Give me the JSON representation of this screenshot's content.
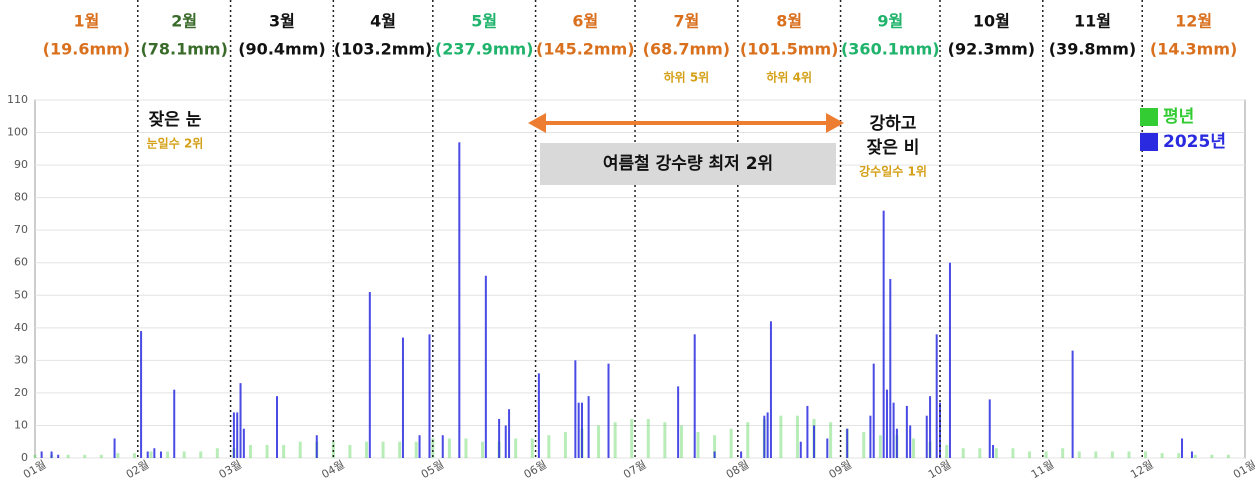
{
  "chart_data": {
    "type": "bar",
    "months": [
      {
        "name": "1월",
        "amount": "(19.6mm)",
        "color": "#d9701e"
      },
      {
        "name": "2월",
        "amount": "(78.1mm)",
        "color": "#3a6b2a"
      },
      {
        "name": "3월",
        "amount": "(90.4mm)",
        "color": "#111111"
      },
      {
        "name": "4월",
        "amount": "(103.2mm)",
        "color": "#111111"
      },
      {
        "name": "5월",
        "amount": "(237.9mm)",
        "color": "#1fb36b"
      },
      {
        "name": "6월",
        "amount": "(145.2mm)",
        "color": "#d9701e"
      },
      {
        "name": "7월",
        "amount": "(68.7mm)",
        "color": "#d9701e",
        "note": "하위 5위"
      },
      {
        "name": "8월",
        "amount": "(101.5mm)",
        "color": "#d9701e",
        "note": "하위 4위"
      },
      {
        "name": "9월",
        "amount": "(360.1mm)",
        "color": "#1fb36b"
      },
      {
        "name": "10월",
        "amount": "(92.3mm)",
        "color": "#111111"
      },
      {
        "name": "11월",
        "amount": "(39.8mm)",
        "color": "#111111"
      },
      {
        "name": "12월",
        "amount": "(14.3mm)",
        "color": "#d9701e"
      }
    ],
    "annotations": {
      "snow": "잦은 눈",
      "snow_note": "눈일수 2위",
      "summer": "여름철 강수량 최저 2위",
      "rain_1": "강하고",
      "rain_2": "잦은 비",
      "rain_note": "강수일수 1위"
    },
    "xlim": [
      0,
      365
    ],
    "xticks": [
      {
        "value": 0,
        "label": "01월"
      },
      {
        "value": 31,
        "label": "02월"
      },
      {
        "value": 59,
        "label": "03월"
      },
      {
        "value": 90,
        "label": "04월"
      },
      {
        "value": 120,
        "label": "05월"
      },
      {
        "value": 151,
        "label": "06월"
      },
      {
        "value": 181,
        "label": "07월"
      },
      {
        "value": 212,
        "label": "08월"
      },
      {
        "value": 243,
        "label": "09월"
      },
      {
        "value": 273,
        "label": "10월"
      },
      {
        "value": 304,
        "label": "11월"
      },
      {
        "value": 334,
        "label": "12월"
      },
      {
        "value": 365,
        "label": "01월"
      }
    ],
    "ylim": [
      0,
      110
    ],
    "yticks": [
      0,
      10,
      20,
      30,
      40,
      50,
      60,
      70,
      80,
      90,
      100,
      110
    ],
    "grid": true,
    "legend": "top-right",
    "series": [
      {
        "name": "평년",
        "color": "#33cc33",
        "x": [
          0,
          5,
          10,
          15,
          20,
          25,
          30,
          35,
          40,
          45,
          50,
          55,
          60,
          65,
          70,
          75,
          80,
          85,
          90,
          95,
          100,
          105,
          110,
          115,
          120,
          125,
          130,
          135,
          140,
          145,
          150,
          155,
          160,
          165,
          170,
          175,
          180,
          185,
          190,
          195,
          200,
          205,
          210,
          215,
          220,
          225,
          230,
          235,
          240,
          245,
          250,
          255,
          260,
          265,
          270,
          275,
          280,
          285,
          290,
          295,
          300,
          305,
          310,
          315,
          320,
          325,
          330,
          335,
          340,
          345,
          350,
          355,
          360
        ],
        "values": [
          1,
          1,
          1,
          1,
          1,
          1.5,
          1.5,
          2,
          2,
          2,
          2,
          3,
          3,
          4,
          4,
          4,
          5,
          5,
          5,
          4,
          5,
          5,
          5,
          5,
          6,
          6,
          6,
          5,
          5,
          6,
          6,
          7,
          8,
          9,
          10,
          11,
          12,
          12,
          11,
          10,
          8,
          7,
          9,
          11,
          12,
          13,
          13,
          12,
          11,
          9,
          8,
          7,
          7,
          6,
          5,
          4,
          3,
          3,
          3,
          3,
          2,
          2,
          3,
          2,
          2,
          2,
          2,
          2,
          1.5,
          1.5,
          1,
          1,
          1
        ]
      },
      {
        "name": "2025년",
        "color": "#2a2ae0",
        "x": [
          2,
          5,
          7,
          24,
          32,
          34,
          36,
          38,
          42,
          60,
          61,
          62,
          63,
          73,
          85,
          101,
          111,
          116,
          119,
          123,
          128,
          136,
          140,
          142,
          143,
          152,
          163,
          164,
          165,
          167,
          173,
          194,
          199,
          205,
          213,
          220,
          221,
          222,
          231,
          233,
          235,
          239,
          245,
          252,
          253,
          256,
          257,
          258,
          259,
          260,
          263,
          264,
          269,
          270,
          272,
          273,
          276,
          288,
          289,
          313,
          346,
          349
        ],
        "values": [
          2,
          2,
          1,
          6,
          39,
          2,
          3,
          2,
          21,
          14,
          14,
          23,
          9,
          19,
          7,
          51,
          37,
          7,
          38,
          7,
          97,
          56,
          12,
          10,
          15,
          26,
          30,
          17,
          17,
          19,
          29,
          22,
          38,
          2,
          2,
          13,
          14,
          42,
          5,
          16,
          10,
          6,
          9,
          13,
          29,
          76,
          21,
          55,
          17,
          9,
          16,
          10,
          13,
          19,
          38,
          17,
          60,
          18,
          4,
          33,
          6,
          2
        ]
      }
    ]
  }
}
